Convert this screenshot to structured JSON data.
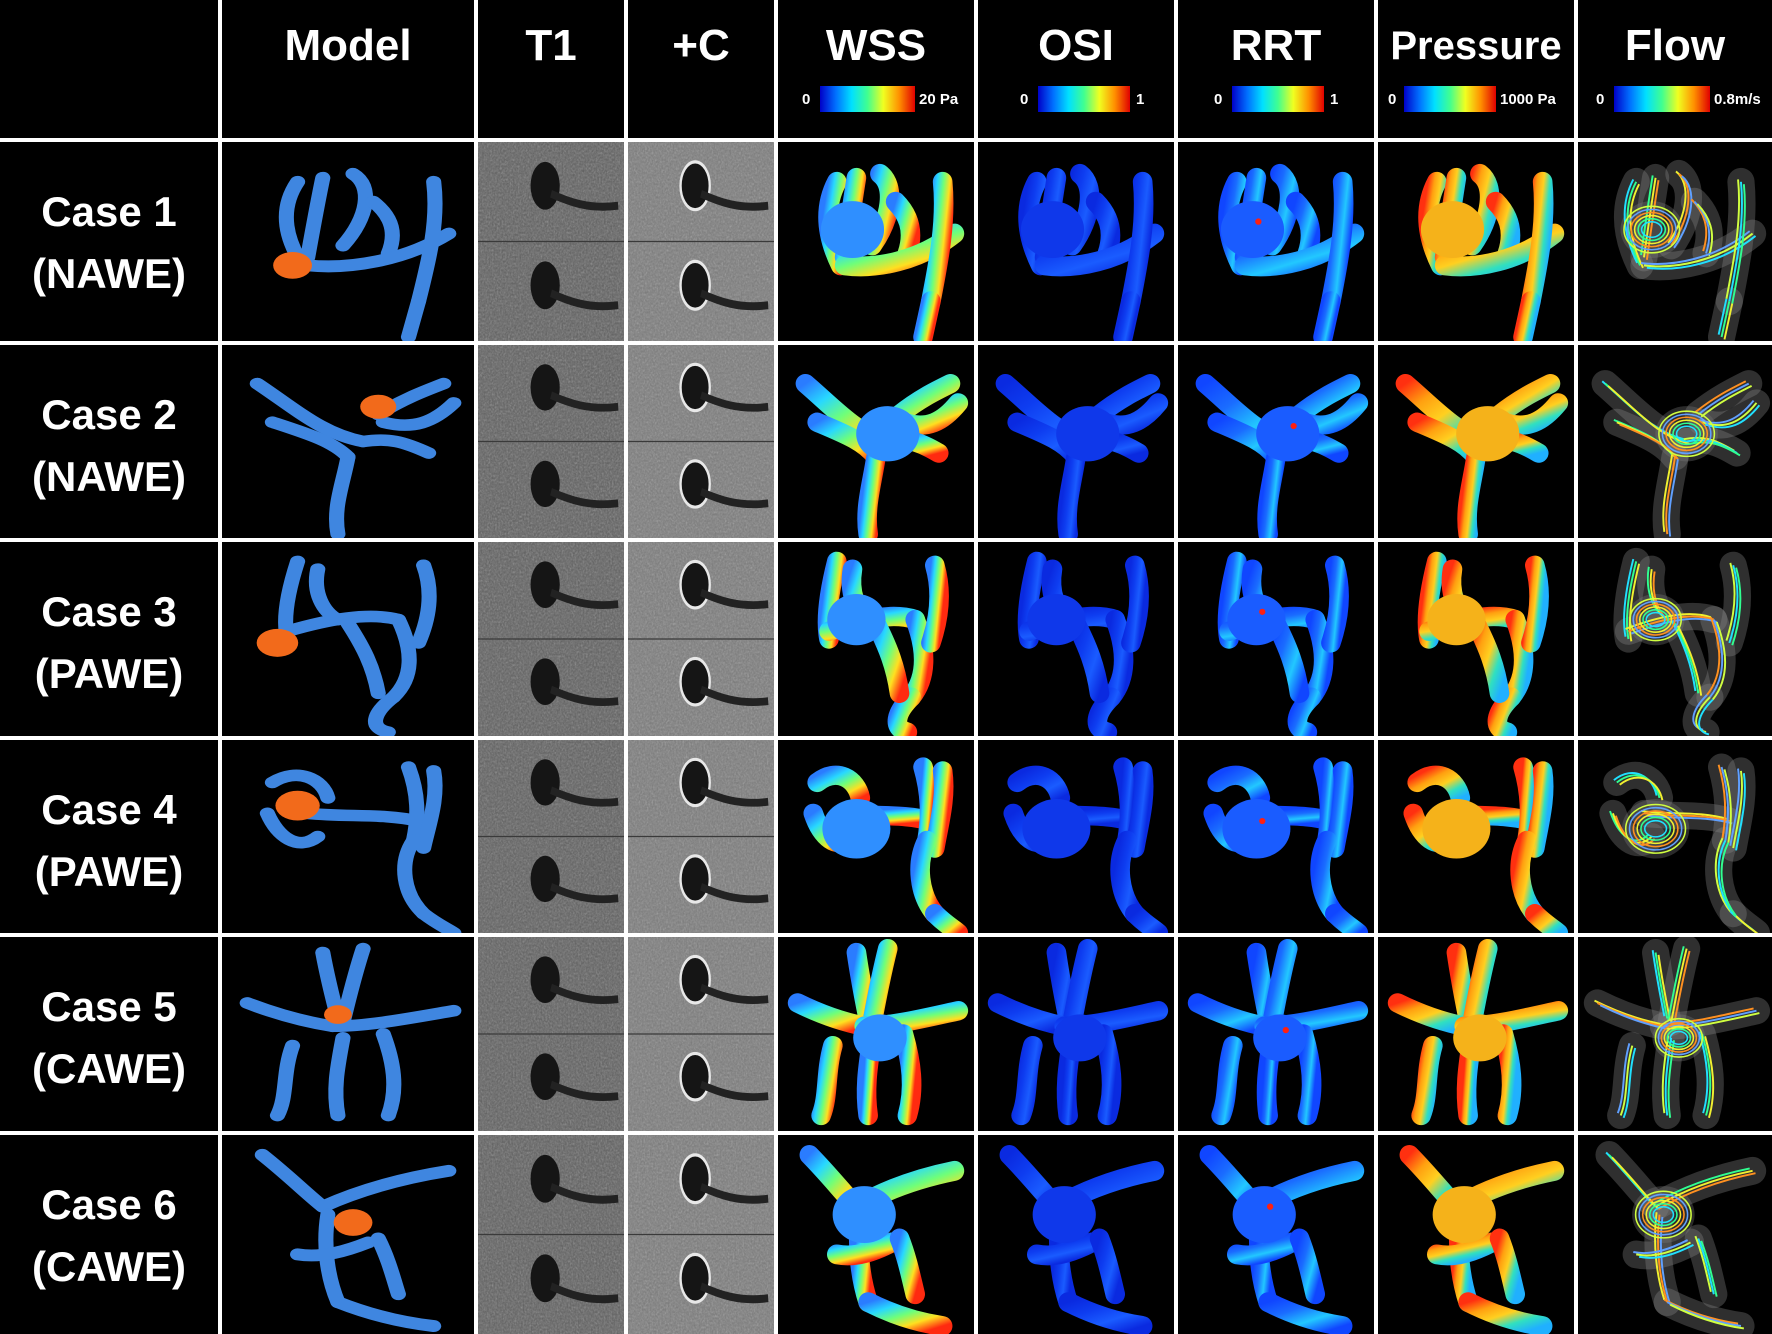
{
  "columns": [
    {
      "key": "model",
      "title": "Model"
    },
    {
      "key": "t1",
      "title": "T1"
    },
    {
      "key": "c",
      "title": "+C"
    },
    {
      "key": "wss",
      "title": "WSS",
      "scale_min": "0",
      "scale_max": "20 Pa"
    },
    {
      "key": "osi",
      "title": "OSI",
      "scale_min": "0",
      "scale_max": "1"
    },
    {
      "key": "rrt",
      "title": "RRT",
      "scale_min": "0",
      "scale_max": "1"
    },
    {
      "key": "pressure",
      "title": "Pressure",
      "scale_min": "0",
      "scale_max": "1000 Pa"
    },
    {
      "key": "flow",
      "title": "Flow",
      "scale_min": "0",
      "scale_max": "0.8m/s"
    }
  ],
  "rows": [
    {
      "case": "Case 1",
      "group": "(NAWE)"
    },
    {
      "case": "Case 2",
      "group": "(NAWE)"
    },
    {
      "case": "Case 3",
      "group": "(PAWE)"
    },
    {
      "case": "Case 4",
      "group": "(PAWE)"
    },
    {
      "case": "Case 5",
      "group": "(CAWE)"
    },
    {
      "case": "Case 6",
      "group": "(CAWE)"
    }
  ],
  "colors": {
    "vessel": "#3f86e0",
    "aneurysm": "#f26a1b",
    "jet_gradient": [
      "#0000c8",
      "#0070ff",
      "#00e0ff",
      "#40ff90",
      "#f0ff20",
      "#ff9000",
      "#e00000"
    ]
  }
}
